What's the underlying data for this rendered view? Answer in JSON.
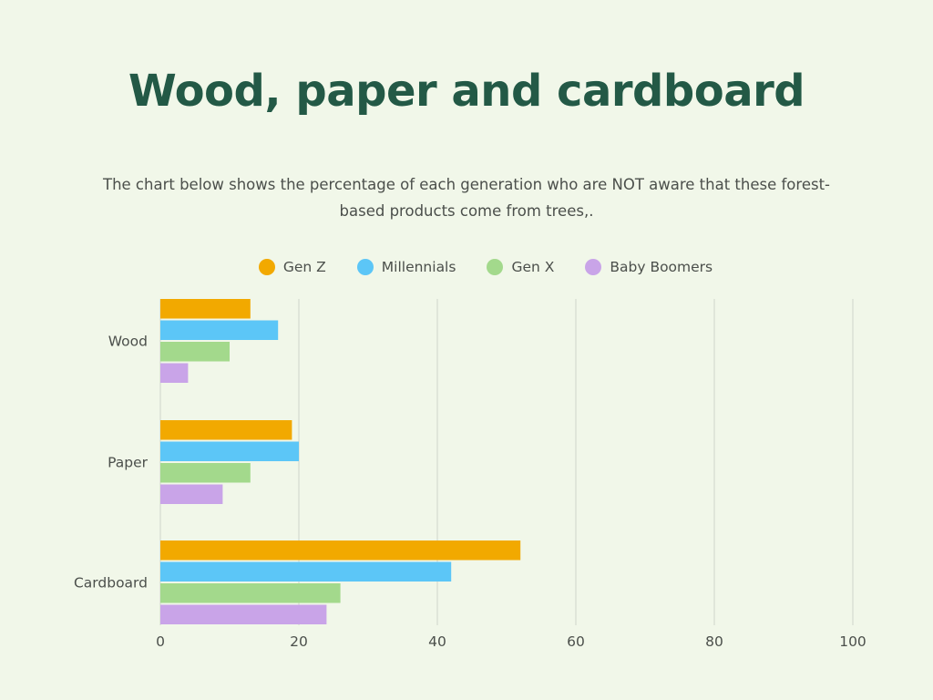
{
  "chart_data": {
    "type": "bar",
    "orientation": "horizontal",
    "title": "Wood, paper and cardboard",
    "subtitle": "The chart below shows the percentage of each generation who are NOT aware that these forest-based products come from trees,.",
    "categories": [
      "Wood",
      "Paper",
      "Cardboard"
    ],
    "series": [
      {
        "name": "Gen Z",
        "color": "#f2a900",
        "values": [
          13,
          19,
          52
        ]
      },
      {
        "name": "Millennials",
        "color": "#5cc6f7",
        "values": [
          17,
          20,
          42
        ]
      },
      {
        "name": "Gen X",
        "color": "#a3d98c",
        "values": [
          10,
          13,
          26
        ]
      },
      {
        "name": "Baby Boomers",
        "color": "#c9a4e8",
        "values": [
          4,
          9,
          24
        ]
      }
    ],
    "xlim": [
      0,
      100
    ],
    "xticks": [
      0,
      20,
      40,
      60,
      80,
      100
    ],
    "xlabel": "",
    "ylabel": "",
    "grid": "vertical",
    "legend_position": "top-center"
  }
}
